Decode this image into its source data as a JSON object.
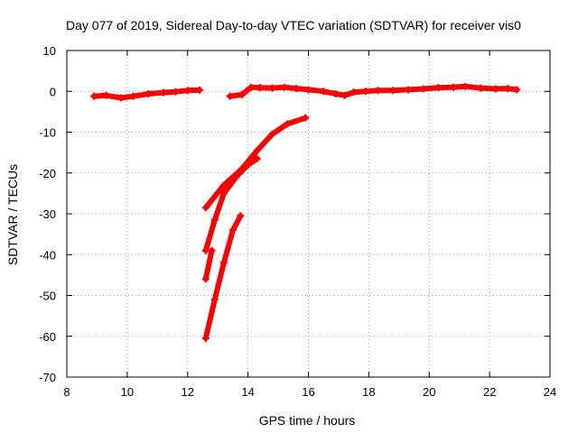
{
  "chart_data": {
    "type": "line",
    "title": "Day 077 of 2019, Sidereal Day-to-day VTEC variation (SDTVAR) for receiver vis0",
    "xlabel": "GPS time / hours",
    "ylabel": "SDTVAR / TECUs",
    "xlim": [
      8,
      24
    ],
    "ylim": [
      -70,
      10
    ],
    "xticks": [
      8,
      10,
      12,
      14,
      16,
      18,
      20,
      22,
      24
    ],
    "yticks": [
      10,
      0,
      -10,
      -20,
      -30,
      -40,
      -50,
      -60,
      -70
    ],
    "grid": true,
    "legend": "none",
    "color": "#ff0000",
    "series": [
      {
        "name": "segment-1",
        "x": [
          8.9,
          9.3,
          9.8,
          10.2,
          10.7,
          11.2,
          11.6,
          12.0,
          12.4
        ],
        "y": [
          -1.2,
          -1.0,
          -1.6,
          -1.2,
          -0.6,
          -0.3,
          -0.1,
          0.2,
          0.3
        ]
      },
      {
        "name": "segment-2",
        "x": [
          13.4,
          13.8,
          14.1,
          14.4,
          14.8,
          15.2,
          15.6,
          16.0,
          16.5,
          16.9,
          17.2,
          17.5,
          17.9,
          18.3,
          18.8,
          19.3,
          19.8,
          20.3,
          20.8,
          21.2,
          21.7,
          22.2,
          22.6,
          22.9
        ],
        "y": [
          -1.2,
          -0.8,
          1.0,
          0.9,
          0.8,
          1.0,
          0.7,
          0.4,
          0.0,
          -0.6,
          -1.0,
          -0.2,
          0.0,
          0.2,
          0.2,
          0.4,
          0.6,
          0.9,
          1.0,
          1.2,
          0.8,
          0.6,
          0.7,
          0.4
        ]
      },
      {
        "name": "segment-3",
        "x": [
          12.6,
          13.2,
          13.8,
          14.3,
          14.8,
          15.3,
          15.9
        ],
        "y": [
          -28.5,
          -23.0,
          -19.0,
          -14.5,
          -10.5,
          -8.0,
          -6.5
        ]
      },
      {
        "name": "segment-4",
        "x": [
          12.6,
          12.9,
          13.2,
          13.6,
          14.0,
          14.3
        ],
        "y": [
          -39.0,
          -31.5,
          -25.0,
          -21.0,
          -18.0,
          -16.5
        ]
      },
      {
        "name": "segment-5",
        "x": [
          12.6,
          12.8
        ],
        "y": [
          -46.0,
          -39.0
        ]
      },
      {
        "name": "segment-6",
        "x": [
          12.6,
          12.9,
          13.2,
          13.5,
          13.75
        ],
        "y": [
          -60.5,
          -51.0,
          -42.0,
          -34.0,
          -30.5
        ]
      }
    ]
  }
}
